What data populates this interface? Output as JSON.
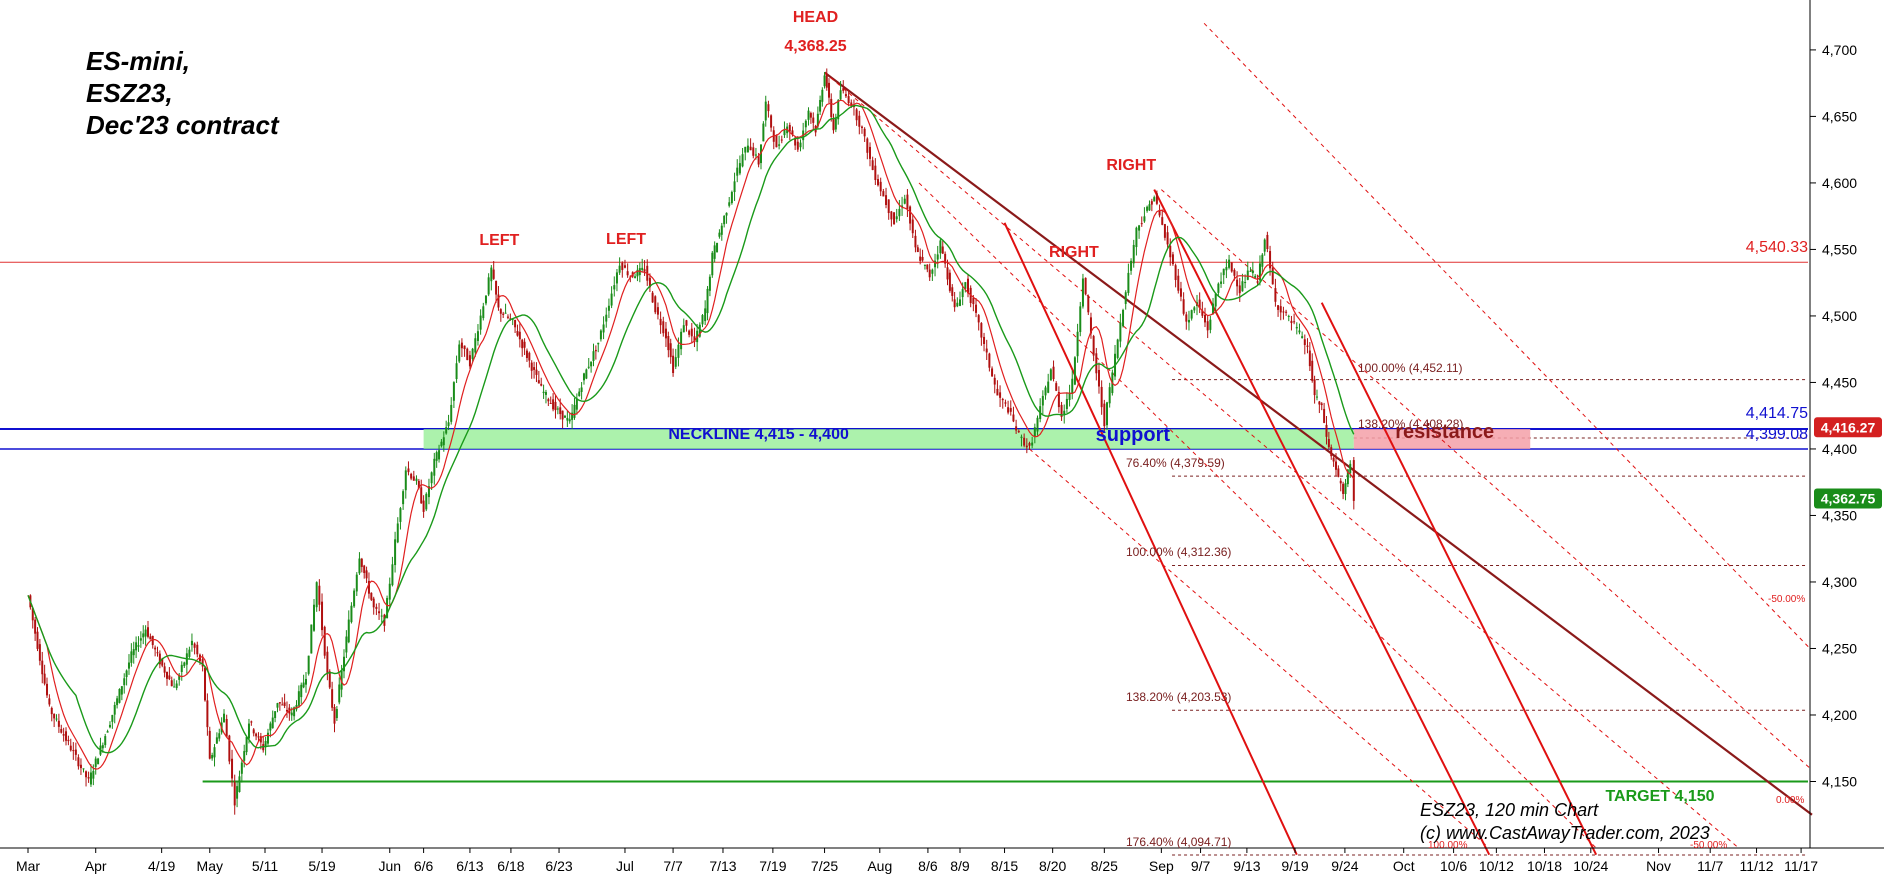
{
  "chart_data": {
    "type": "candlestick",
    "title_lines": [
      "ES-mini,",
      "ESZ23,",
      "Dec'23 contract"
    ],
    "credit_lines": [
      "ESZ23, 120 min Chart",
      "(c) www.CastAwayTrader.com, 2023"
    ],
    "ylim": [
      4100,
      4730
    ],
    "y_ticks": [
      {
        "v": 4700,
        "label": "4,700"
      },
      {
        "v": 4650,
        "label": "4,650"
      },
      {
        "v": 4600,
        "label": "4,600"
      },
      {
        "v": 4550,
        "label": "4,550"
      },
      {
        "v": 4500,
        "label": "4,500"
      },
      {
        "v": 4450,
        "label": "4,450"
      },
      {
        "v": 4400,
        "label": "4,400"
      },
      {
        "v": 4350,
        "label": "4,350"
      },
      {
        "v": 4300,
        "label": "4,300"
      },
      {
        "v": 4250,
        "label": "4,250"
      },
      {
        "v": 4200,
        "label": "4,200"
      },
      {
        "v": 4150,
        "label": "4,150"
      }
    ],
    "x_ticks": [
      {
        "t": 0,
        "label": "Mar"
      },
      {
        "t": 38,
        "label": "Apr"
      },
      {
        "t": 75,
        "label": "4/19"
      },
      {
        "t": 102,
        "label": "May"
      },
      {
        "t": 133,
        "label": "5/11"
      },
      {
        "t": 165,
        "label": "5/19"
      },
      {
        "t": 203,
        "label": "Jun"
      },
      {
        "t": 222,
        "label": "6/6"
      },
      {
        "t": 248,
        "label": "6/13"
      },
      {
        "t": 271,
        "label": "6/18"
      },
      {
        "t": 298,
        "label": "6/23"
      },
      {
        "t": 335,
        "label": "Jul"
      },
      {
        "t": 362,
        "label": "7/7"
      },
      {
        "t": 390,
        "label": "7/13"
      },
      {
        "t": 418,
        "label": "7/19"
      },
      {
        "t": 447,
        "label": "7/25"
      },
      {
        "t": 478,
        "label": "Aug"
      },
      {
        "t": 505,
        "label": "8/6"
      },
      {
        "t": 523,
        "label": "8/9"
      },
      {
        "t": 548,
        "label": "8/15"
      },
      {
        "t": 575,
        "label": "8/20"
      },
      {
        "t": 604,
        "label": "8/25"
      },
      {
        "t": 636,
        "label": "Sep"
      },
      {
        "t": 658,
        "label": "9/7"
      },
      {
        "t": 684,
        "label": "9/13"
      },
      {
        "t": 711,
        "label": "9/19"
      },
      {
        "t": 739,
        "label": "9/24"
      },
      {
        "t": 772,
        "label": "Oct"
      },
      {
        "t": 800,
        "label": "10/6"
      },
      {
        "t": 824,
        "label": "10/12"
      },
      {
        "t": 851,
        "label": "10/18"
      },
      {
        "t": 877,
        "label": "10/24"
      },
      {
        "t": 915,
        "label": "Nov"
      },
      {
        "t": 944,
        "label": "11/7"
      },
      {
        "t": 970,
        "label": "11/12"
      },
      {
        "t": 995,
        "label": "11/17"
      }
    ],
    "price_path": [
      [
        0,
        4290
      ],
      [
        12,
        4205
      ],
      [
        24,
        4175
      ],
      [
        34,
        4150
      ],
      [
        46,
        4195
      ],
      [
        58,
        4245
      ],
      [
        66,
        4265
      ],
      [
        74,
        4240
      ],
      [
        82,
        4220
      ],
      [
        92,
        4255
      ],
      [
        98,
        4235
      ],
      [
        102,
        4165
      ],
      [
        110,
        4200
      ],
      [
        116,
        4135
      ],
      [
        124,
        4195
      ],
      [
        132,
        4175
      ],
      [
        140,
        4210
      ],
      [
        148,
        4200
      ],
      [
        156,
        4230
      ],
      [
        162,
        4300
      ],
      [
        168,
        4230
      ],
      [
        172,
        4195
      ],
      [
        180,
        4270
      ],
      [
        186,
        4320
      ],
      [
        194,
        4280
      ],
      [
        200,
        4270
      ],
      [
        206,
        4330
      ],
      [
        212,
        4385
      ],
      [
        218,
        4375
      ],
      [
        222,
        4355
      ],
      [
        228,
        4390
      ],
      [
        236,
        4420
      ],
      [
        242,
        4480
      ],
      [
        248,
        4465
      ],
      [
        254,
        4500
      ],
      [
        260,
        4535
      ],
      [
        264,
        4505
      ],
      [
        272,
        4495
      ],
      [
        280,
        4470
      ],
      [
        288,
        4445
      ],
      [
        296,
        4430
      ],
      [
        304,
        4420
      ],
      [
        312,
        4455
      ],
      [
        320,
        4480
      ],
      [
        326,
        4510
      ],
      [
        332,
        4540
      ],
      [
        338,
        4530
      ],
      [
        346,
        4535
      ],
      [
        352,
        4505
      ],
      [
        358,
        4485
      ],
      [
        362,
        4460
      ],
      [
        368,
        4495
      ],
      [
        374,
        4480
      ],
      [
        380,
        4505
      ],
      [
        384,
        4545
      ],
      [
        392,
        4580
      ],
      [
        398,
        4610
      ],
      [
        404,
        4630
      ],
      [
        410,
        4615
      ],
      [
        414,
        4660
      ],
      [
        420,
        4625
      ],
      [
        426,
        4645
      ],
      [
        432,
        4625
      ],
      [
        438,
        4655
      ],
      [
        442,
        4640
      ],
      [
        447,
        4683
      ],
      [
        452,
        4640
      ],
      [
        456,
        4670
      ],
      [
        462,
        4660
      ],
      [
        468,
        4640
      ],
      [
        474,
        4610
      ],
      [
        480,
        4590
      ],
      [
        486,
        4570
      ],
      [
        492,
        4590
      ],
      [
        498,
        4550
      ],
      [
        506,
        4530
      ],
      [
        512,
        4555
      ],
      [
        520,
        4505
      ],
      [
        526,
        4525
      ],
      [
        532,
        4500
      ],
      [
        538,
        4470
      ],
      [
        544,
        4440
      ],
      [
        550,
        4430
      ],
      [
        556,
        4410
      ],
      [
        562,
        4400
      ],
      [
        568,
        4430
      ],
      [
        574,
        4460
      ],
      [
        580,
        4425
      ],
      [
        586,
        4450
      ],
      [
        592,
        4530
      ],
      [
        598,
        4470
      ],
      [
        604,
        4420
      ],
      [
        610,
        4470
      ],
      [
        616,
        4520
      ],
      [
        622,
        4565
      ],
      [
        628,
        4580
      ],
      [
        632,
        4590
      ],
      [
        638,
        4560
      ],
      [
        644,
        4530
      ],
      [
        650,
        4495
      ],
      [
        656,
        4510
      ],
      [
        662,
        4490
      ],
      [
        668,
        4525
      ],
      [
        674,
        4540
      ],
      [
        680,
        4520
      ],
      [
        686,
        4535
      ],
      [
        690,
        4525
      ],
      [
        694,
        4560
      ],
      [
        700,
        4510
      ],
      [
        706,
        4500
      ],
      [
        712,
        4490
      ],
      [
        718,
        4475
      ],
      [
        722,
        4440
      ],
      [
        726,
        4430
      ],
      [
        730,
        4400
      ],
      [
        734,
        4385
      ],
      [
        738,
        4365
      ],
      [
        742,
        4390
      ],
      [
        744,
        4362.75
      ]
    ],
    "right_tags": [
      {
        "v": 4416.27,
        "label": "4,416.27",
        "color": "#d42020"
      },
      {
        "v": 4362.75,
        "label": "4,362.75",
        "color": "#1a8c1a"
      }
    ],
    "annotations": {
      "head": "HEAD",
      "head_value": "4,368.25",
      "left1": "LEFT",
      "left2": "LEFT",
      "right1": "RIGHT",
      "right2": "RIGHT",
      "neckline": "NECKLINE 4,415 - 4,400",
      "support": "support",
      "resistance": "resistance",
      "target": "TARGET 4,150",
      "level_4540": "4,540.33",
      "level_4414": "4,414.75",
      "level_4399": "4,399.08",
      "fib_100a": "100.00% (4,452.11)",
      "fib_138a": "138.20% (4,408.28)",
      "fib_764": "76.40% (4,379.59)",
      "fib_100b": "100.00% (4,312.36)",
      "fib_138b": "138.20% (4,203.53)",
      "fib_1764": "176.40% (4,094.71)",
      "pct_neg50": "-50.00%",
      "pct_zero": "0.00%",
      "pct_neg50b": "-50.00%",
      "pct_100b": "100.00%"
    },
    "colors": {
      "up": "#1a8c1a",
      "down": "#b01010",
      "fast_ma": "#e02020",
      "slow_ma": "#1a9a1a",
      "neckline": "#1010d0",
      "zone_green": "#90ee90",
      "zone_pink": "#f4a0a8",
      "trend_dark": "#8b1a1a",
      "channel_red": "#e01010",
      "target": "#1a9a1a",
      "text_red": "#e02020"
    },
    "grid": false
  }
}
